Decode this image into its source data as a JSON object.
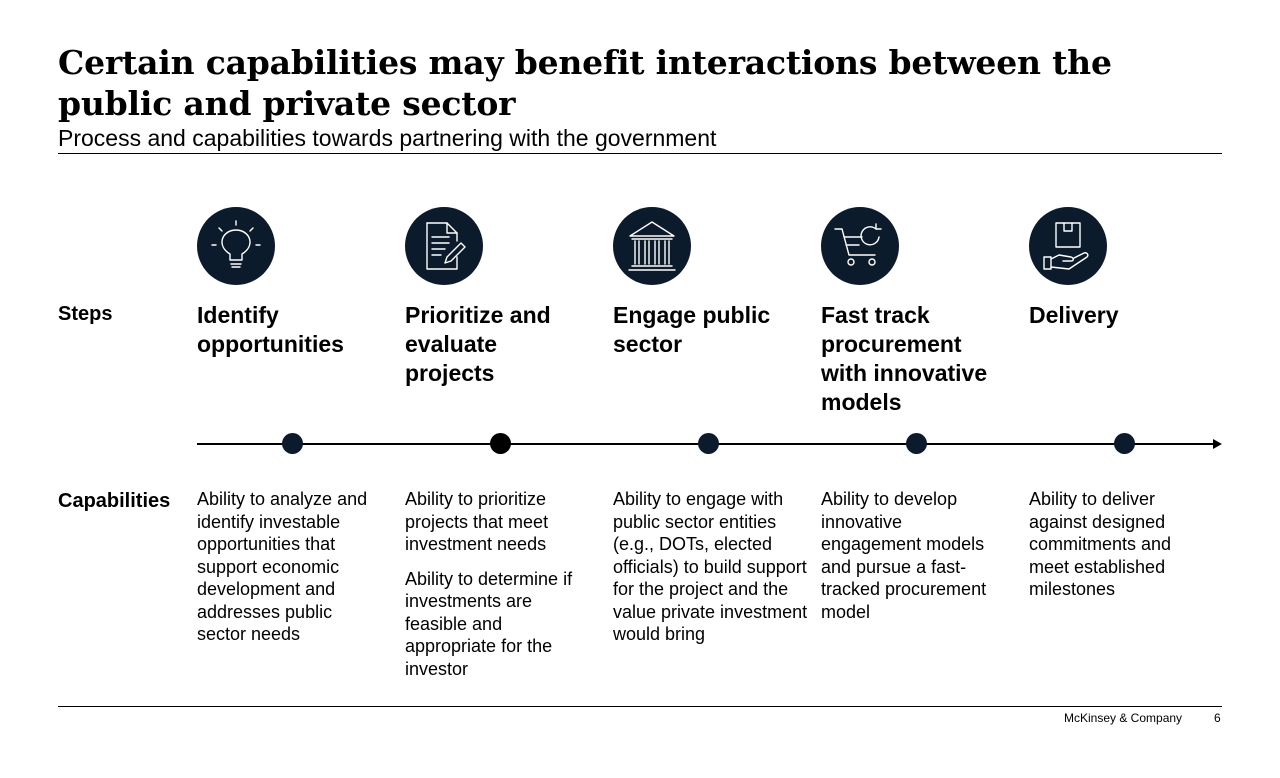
{
  "header": {
    "title": "Certain capabilities may benefit interactions between the public and private sector",
    "subtitle": "Process and capabilities towards partnering with the government"
  },
  "labels": {
    "steps": "Steps",
    "capabilities": "Capabilities"
  },
  "colors": {
    "icon_circle": "#0c1b2c",
    "active_dot": "#000000"
  },
  "steps": [
    {
      "icon": "lightbulb-icon",
      "title": "Identify opportunities",
      "capabilities": [
        "Ability to analyze and identify investable opportunities that support economic development and addresses public sector needs"
      ]
    },
    {
      "icon": "document-pen-icon",
      "title": "Prioritize and evaluate projects",
      "capabilities": [
        "Ability to prioritize projects that meet investment needs",
        "Ability to determine if investments are feasible and appropriate for the investor"
      ]
    },
    {
      "icon": "government-building-icon",
      "title": "Engage public sector",
      "capabilities": [
        "Ability to engage with public sector entities (e.g., DOTs, elected officials) to build support for the project and the value private investment would bring"
      ]
    },
    {
      "icon": "cart-refresh-icon",
      "title": "Fast track procurement with innovative models",
      "capabilities": [
        "Ability to develop innovative engagement models and pursue a fast-tracked procurement model"
      ]
    },
    {
      "icon": "box-hand-icon",
      "title": "Delivery",
      "capabilities": [
        "Ability to deliver against designed commitments and meet established milestones"
      ]
    }
  ],
  "footer": {
    "brand": "McKinsey & Company",
    "page_number": "6"
  }
}
